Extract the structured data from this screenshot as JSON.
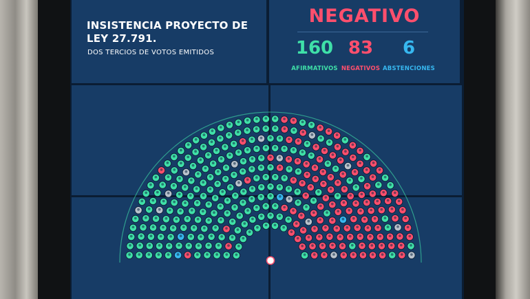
{
  "header": {
    "title": "INSISTENCIA PROYECTO DE LEY 27.791.",
    "subtitle": "DOS TERCIOS DE VOTOS EMITIDOS"
  },
  "result": {
    "label": "NEGATIVO",
    "color": "#ff4f6d"
  },
  "tally": [
    {
      "key": "afirmativos",
      "value": "160",
      "label": "AFIRMATIVOS",
      "color": "#3fe0a8"
    },
    {
      "key": "negativos",
      "value": "83",
      "label": "NEGATIVOS",
      "color": "#ff4f6d"
    },
    {
      "key": "abstenciones",
      "value": "6",
      "label": "ABSTENCIONES",
      "color": "#37b8f0"
    }
  ],
  "hemicycle": {
    "rows": 12,
    "colors": {
      "afirmativo": "#3fe0a8",
      "negativo": "#ff4f6d",
      "abstencion": "#37b8f0",
      "ausente": "#b9c2cc"
    }
  }
}
